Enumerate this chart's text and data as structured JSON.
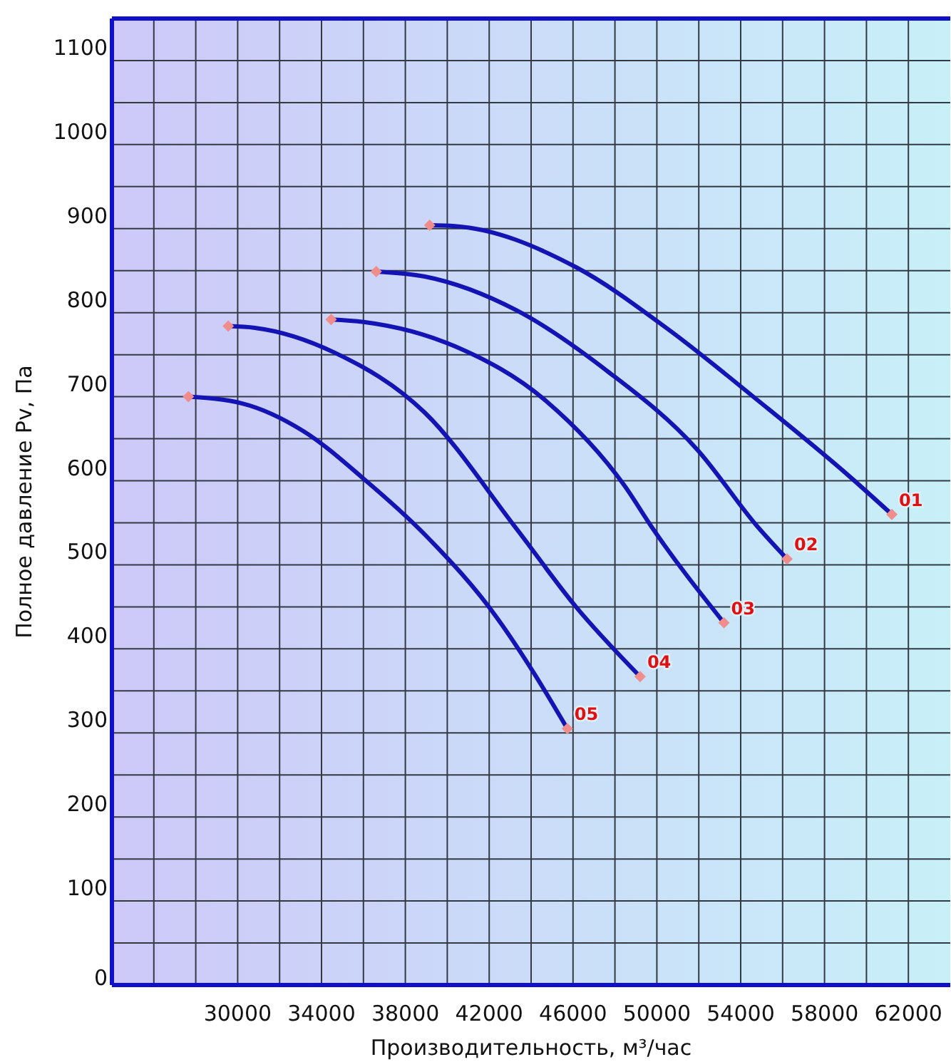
{
  "chart_data": {
    "type": "line",
    "xlabel": "Производительность, м³/час",
    "ylabel": "Полное давление Pv, Па",
    "xlim": [
      24000,
      64000
    ],
    "ylim": [
      0,
      1150
    ],
    "xticks": [
      {
        "value": 26000,
        "label": null
      },
      {
        "value": 28000,
        "label": null
      },
      30000,
      {
        "value": 32000,
        "label": null
      },
      34000,
      {
        "value": 36000,
        "label": null
      },
      38000,
      {
        "value": 40000,
        "label": null
      },
      42000,
      {
        "value": 44000,
        "label": null
      },
      46000,
      {
        "value": 48000,
        "label": null
      },
      50000,
      {
        "value": 52000,
        "label": null
      },
      54000,
      {
        "value": 56000,
        "label": null
      },
      58000,
      {
        "value": 60000,
        "label": null
      },
      62000
    ],
    "yticks": [
      0,
      {
        "value": 50,
        "label": null
      },
      100,
      {
        "value": 150,
        "label": null
      },
      200,
      {
        "value": 250,
        "label": null
      },
      300,
      {
        "value": 350,
        "label": null
      },
      400,
      {
        "value": 450,
        "label": null
      },
      500,
      {
        "value": 550,
        "label": null
      },
      600,
      {
        "value": 650,
        "label": null
      },
      700,
      {
        "value": 750,
        "label": null
      },
      800,
      {
        "value": 850,
        "label": null
      },
      900,
      {
        "value": 950,
        "label": null
      },
      1000,
      {
        "value": 1050,
        "label": null
      },
      1100
    ],
    "grid": true,
    "line_style": "solid",
    "series": [
      {
        "name": "01",
        "marker": "none",
        "color": "#1414b4",
        "x": [
          39160,
          40360,
          46150,
          50500,
          54850,
          59200,
          61210
        ],
        "values": [
          904,
          903,
          854,
          781,
          695,
          605,
          560
        ]
      },
      {
        "name": "02",
        "marker": "none",
        "color": "#1414b4",
        "x": [
          36610,
          38930,
          43290,
          47610,
          51930,
          54850,
          56210
        ],
        "values": [
          849,
          843,
          803,
          731,
          637,
          544,
          507
        ]
      },
      {
        "name": "03",
        "marker": "none",
        "color": "#1414b4",
        "x": [
          34460,
          36010,
          40360,
          44710,
          48460,
          49780,
          53200
        ],
        "values": [
          792,
          789,
          760,
          695,
          594,
          544,
          431
        ]
      },
      {
        "name": "04",
        "marker": "none",
        "color": "#1414b4",
        "x": [
          29550,
          30820,
          34580,
          38930,
          43270,
          46140,
          49200
        ],
        "values": [
          784,
          782,
          753,
          681,
          544,
          450,
          367
        ]
      },
      {
        "name": "05",
        "marker": "none",
        "color": "#1414b4",
        "x": [
          27650,
          30220,
          33140,
          36030,
          38930,
          42400,
          44140,
          45730
        ],
        "values": [
          700,
          692,
          659,
          602,
          536,
          436,
          371,
          305
        ]
      },
      {
        "type": "scatter",
        "marker": "diamond",
        "color": "#f08c8c",
        "x": [
          39160,
          61210
        ],
        "values": [
          904,
          560
        ]
      },
      {
        "type": "scatter",
        "marker": "diamond",
        "color": "#f08c8c",
        "x": [
          36610,
          56210
        ],
        "values": [
          849,
          507
        ]
      },
      {
        "type": "scatter",
        "marker": "diamond",
        "color": "#f08c8c",
        "x": [
          34460,
          53200
        ],
        "values": [
          792,
          431
        ]
      },
      {
        "type": "scatter",
        "marker": "diamond",
        "color": "#f08c8c",
        "x": [
          29550,
          49200
        ],
        "values": [
          784,
          367
        ]
      },
      {
        "type": "scatter",
        "marker": "diamond",
        "color": "#f08c8c",
        "x": [
          27650,
          45730
        ],
        "values": [
          700,
          305
        ]
      }
    ]
  }
}
